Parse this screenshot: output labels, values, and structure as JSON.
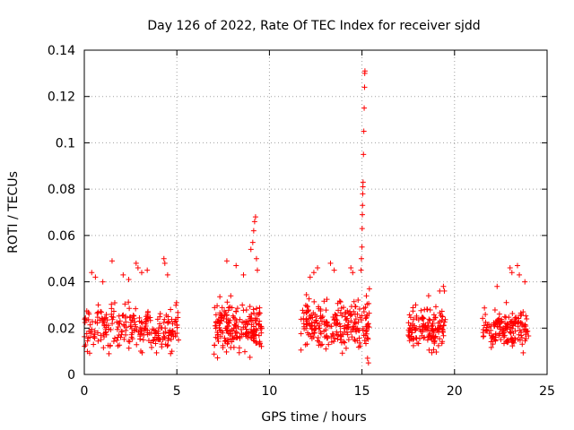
{
  "chart_data": {
    "type": "scatter",
    "title": "Day 126 of 2022, Rate Of TEC Index for receiver sjdd",
    "xlabel": "GPS time / hours",
    "ylabel": "ROTI / TECUs",
    "xlim": [
      0,
      25
    ],
    "ylim": [
      0,
      0.14
    ],
    "x_ticks": [
      0,
      5,
      10,
      15,
      20,
      25
    ],
    "x_tick_labels": [
      "0",
      "5",
      "10",
      "15",
      "20",
      "25"
    ],
    "y_ticks": [
      0,
      0.02,
      0.04,
      0.06,
      0.08,
      0.1,
      0.12,
      0.14
    ],
    "y_tick_labels": [
      "0",
      "0.02",
      "0.04",
      "0.06",
      "0.08",
      "0.1",
      "0.12",
      "0.14"
    ],
    "grid": true,
    "marker": "+",
    "colors": {
      "marker": "#ff0000",
      "grid": "#a0a0a0",
      "axis": "#000000"
    },
    "series": [
      {
        "name": "ROTI",
        "clusters": [
          {
            "x_range": [
              0.0,
              5.1
            ],
            "y_range": [
              0.006,
              0.036
            ],
            "y_center": 0.02,
            "density": 260
          },
          {
            "x_range": [
              7.0,
              9.6
            ],
            "y_range": [
              0.007,
              0.04
            ],
            "y_center": 0.02,
            "density": 200
          },
          {
            "x_range": [
              11.7,
              15.4
            ],
            "y_range": [
              0.007,
              0.04
            ],
            "y_center": 0.021,
            "density": 240
          },
          {
            "x_range": [
              17.5,
              19.5
            ],
            "y_range": [
              0.007,
              0.033
            ],
            "y_center": 0.02,
            "density": 140
          },
          {
            "x_range": [
              21.5,
              24.0
            ],
            "y_range": [
              0.008,
              0.035
            ],
            "y_center": 0.02,
            "density": 160
          }
        ],
        "points": [
          {
            "x": 0.4,
            "y": 0.044
          },
          {
            "x": 0.6,
            "y": 0.042
          },
          {
            "x": 1.0,
            "y": 0.04
          },
          {
            "x": 1.5,
            "y": 0.049
          },
          {
            "x": 2.1,
            "y": 0.043
          },
          {
            "x": 2.4,
            "y": 0.041
          },
          {
            "x": 2.8,
            "y": 0.048
          },
          {
            "x": 2.9,
            "y": 0.046
          },
          {
            "x": 3.1,
            "y": 0.044
          },
          {
            "x": 3.4,
            "y": 0.045
          },
          {
            "x": 4.3,
            "y": 0.05
          },
          {
            "x": 4.35,
            "y": 0.048
          },
          {
            "x": 4.5,
            "y": 0.043
          },
          {
            "x": 7.7,
            "y": 0.049
          },
          {
            "x": 8.2,
            "y": 0.047
          },
          {
            "x": 8.6,
            "y": 0.043
          },
          {
            "x": 9.0,
            "y": 0.054
          },
          {
            "x": 9.1,
            "y": 0.057
          },
          {
            "x": 9.15,
            "y": 0.062
          },
          {
            "x": 9.2,
            "y": 0.066
          },
          {
            "x": 9.25,
            "y": 0.068
          },
          {
            "x": 9.3,
            "y": 0.05
          },
          {
            "x": 9.35,
            "y": 0.045
          },
          {
            "x": 12.2,
            "y": 0.042
          },
          {
            "x": 12.4,
            "y": 0.044
          },
          {
            "x": 12.6,
            "y": 0.046
          },
          {
            "x": 13.3,
            "y": 0.048
          },
          {
            "x": 13.5,
            "y": 0.045
          },
          {
            "x": 14.4,
            "y": 0.046
          },
          {
            "x": 14.5,
            "y": 0.044
          },
          {
            "x": 14.95,
            "y": 0.045
          },
          {
            "x": 14.97,
            "y": 0.05
          },
          {
            "x": 15.0,
            "y": 0.055
          },
          {
            "x": 15.01,
            "y": 0.063
          },
          {
            "x": 15.02,
            "y": 0.069
          },
          {
            "x": 15.03,
            "y": 0.073
          },
          {
            "x": 15.04,
            "y": 0.078
          },
          {
            "x": 15.05,
            "y": 0.081
          },
          {
            "x": 15.06,
            "y": 0.083
          },
          {
            "x": 15.08,
            "y": 0.095
          },
          {
            "x": 15.1,
            "y": 0.105
          },
          {
            "x": 15.12,
            "y": 0.115
          },
          {
            "x": 15.14,
            "y": 0.124
          },
          {
            "x": 15.15,
            "y": 0.13
          },
          {
            "x": 15.16,
            "y": 0.131
          },
          {
            "x": 15.3,
            "y": 0.007
          },
          {
            "x": 15.35,
            "y": 0.005
          },
          {
            "x": 15.4,
            "y": 0.037
          },
          {
            "x": 17.9,
            "y": 0.03
          },
          {
            "x": 18.6,
            "y": 0.034
          },
          {
            "x": 19.2,
            "y": 0.036
          },
          {
            "x": 19.4,
            "y": 0.038
          },
          {
            "x": 19.45,
            "y": 0.036
          },
          {
            "x": 22.3,
            "y": 0.038
          },
          {
            "x": 23.0,
            "y": 0.046
          },
          {
            "x": 23.1,
            "y": 0.044
          },
          {
            "x": 23.4,
            "y": 0.047
          },
          {
            "x": 23.5,
            "y": 0.043
          },
          {
            "x": 23.8,
            "y": 0.04
          }
        ]
      }
    ]
  }
}
